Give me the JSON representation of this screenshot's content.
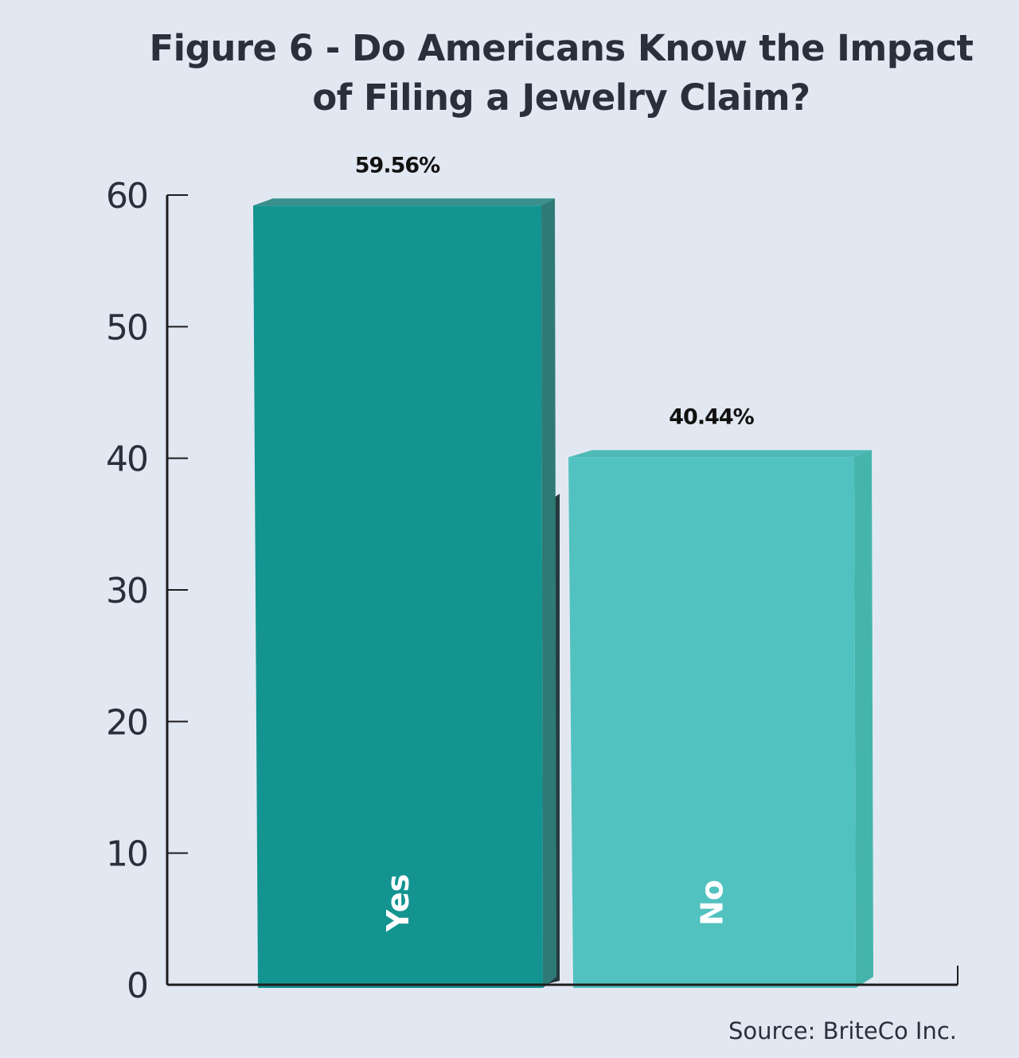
{
  "chart_data": {
    "type": "bar",
    "title": "Figure 6 - Do Americans Know the Impact of Filing a Jewelry Claim?",
    "categories": [
      "Yes",
      "No"
    ],
    "values": [
      59.56,
      40.44
    ],
    "data_labels": [
      "59.56%",
      "40.44%"
    ],
    "ylim": [
      0,
      60
    ],
    "yticks": [
      "0",
      "10",
      "20",
      "30",
      "40",
      "50",
      "60"
    ],
    "grid": false,
    "colors": {
      "Yes": {
        "front": "#139490",
        "side": "#2e7a77",
        "top": "#3a8f8c"
      },
      "No": {
        "front": "#52c2c0",
        "side": "#45b5ab",
        "top": "#4dbab6"
      },
      "shadow": "#263a3e",
      "axis": "#1e1e1e",
      "background": "#e2e8f2"
    },
    "source": "Source: BriteCo Inc."
  }
}
